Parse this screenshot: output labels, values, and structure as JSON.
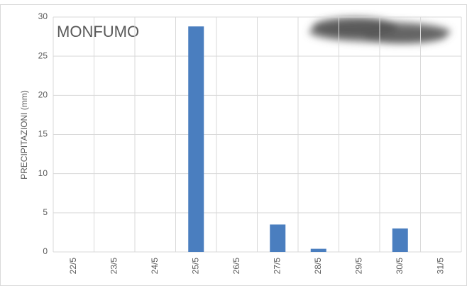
{
  "chart_data": {
    "type": "bar",
    "title": "MONFUMO",
    "y_label": "PRECIPITAZIONI (mm)",
    "categories": [
      "22/5",
      "23/5",
      "24/5",
      "25/5",
      "26/5",
      "27/5",
      "28/5",
      "29/5",
      "30/5",
      "31/5"
    ],
    "values": [
      0,
      0,
      0,
      28.8,
      0,
      3.5,
      0.4,
      0,
      3.0,
      0
    ],
    "color": "#4a7ebf",
    "ylim": [
      0,
      30
    ],
    "yticks": [
      0,
      5,
      10,
      15,
      20,
      25,
      30
    ],
    "grid": true
  }
}
